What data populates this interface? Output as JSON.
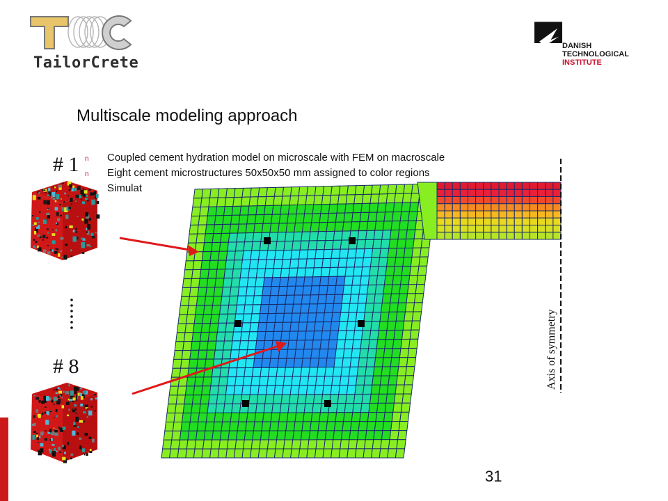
{
  "logo_left": {
    "name": "TailorCrete"
  },
  "logo_right": {
    "line1": "DANISH",
    "line2": "TECHNOLOGICAL",
    "line3": "INSTITUTE"
  },
  "slide": {
    "title": "Multiscale modeling approach",
    "bullets": [
      "Coupled cement hydration model on microscale with FEM on macroscale",
      "Eight cement microstructures 50x50x50 mm assigned to color regions",
      "Simulat"
    ],
    "label_first": "# 1",
    "label_last": "# 8",
    "axis_label": "Axis of symmetry",
    "page_number": "31"
  },
  "colors": {
    "accent_red": "#cc1a1a",
    "mesh_outer": "#88ee22",
    "mesh_green": "#22dd22",
    "mesh_teal": "#22ddaa",
    "mesh_cyan": "#22e6f2",
    "mesh_blue": "#2288ee",
    "mesh_lines": "#1a2a6a"
  }
}
